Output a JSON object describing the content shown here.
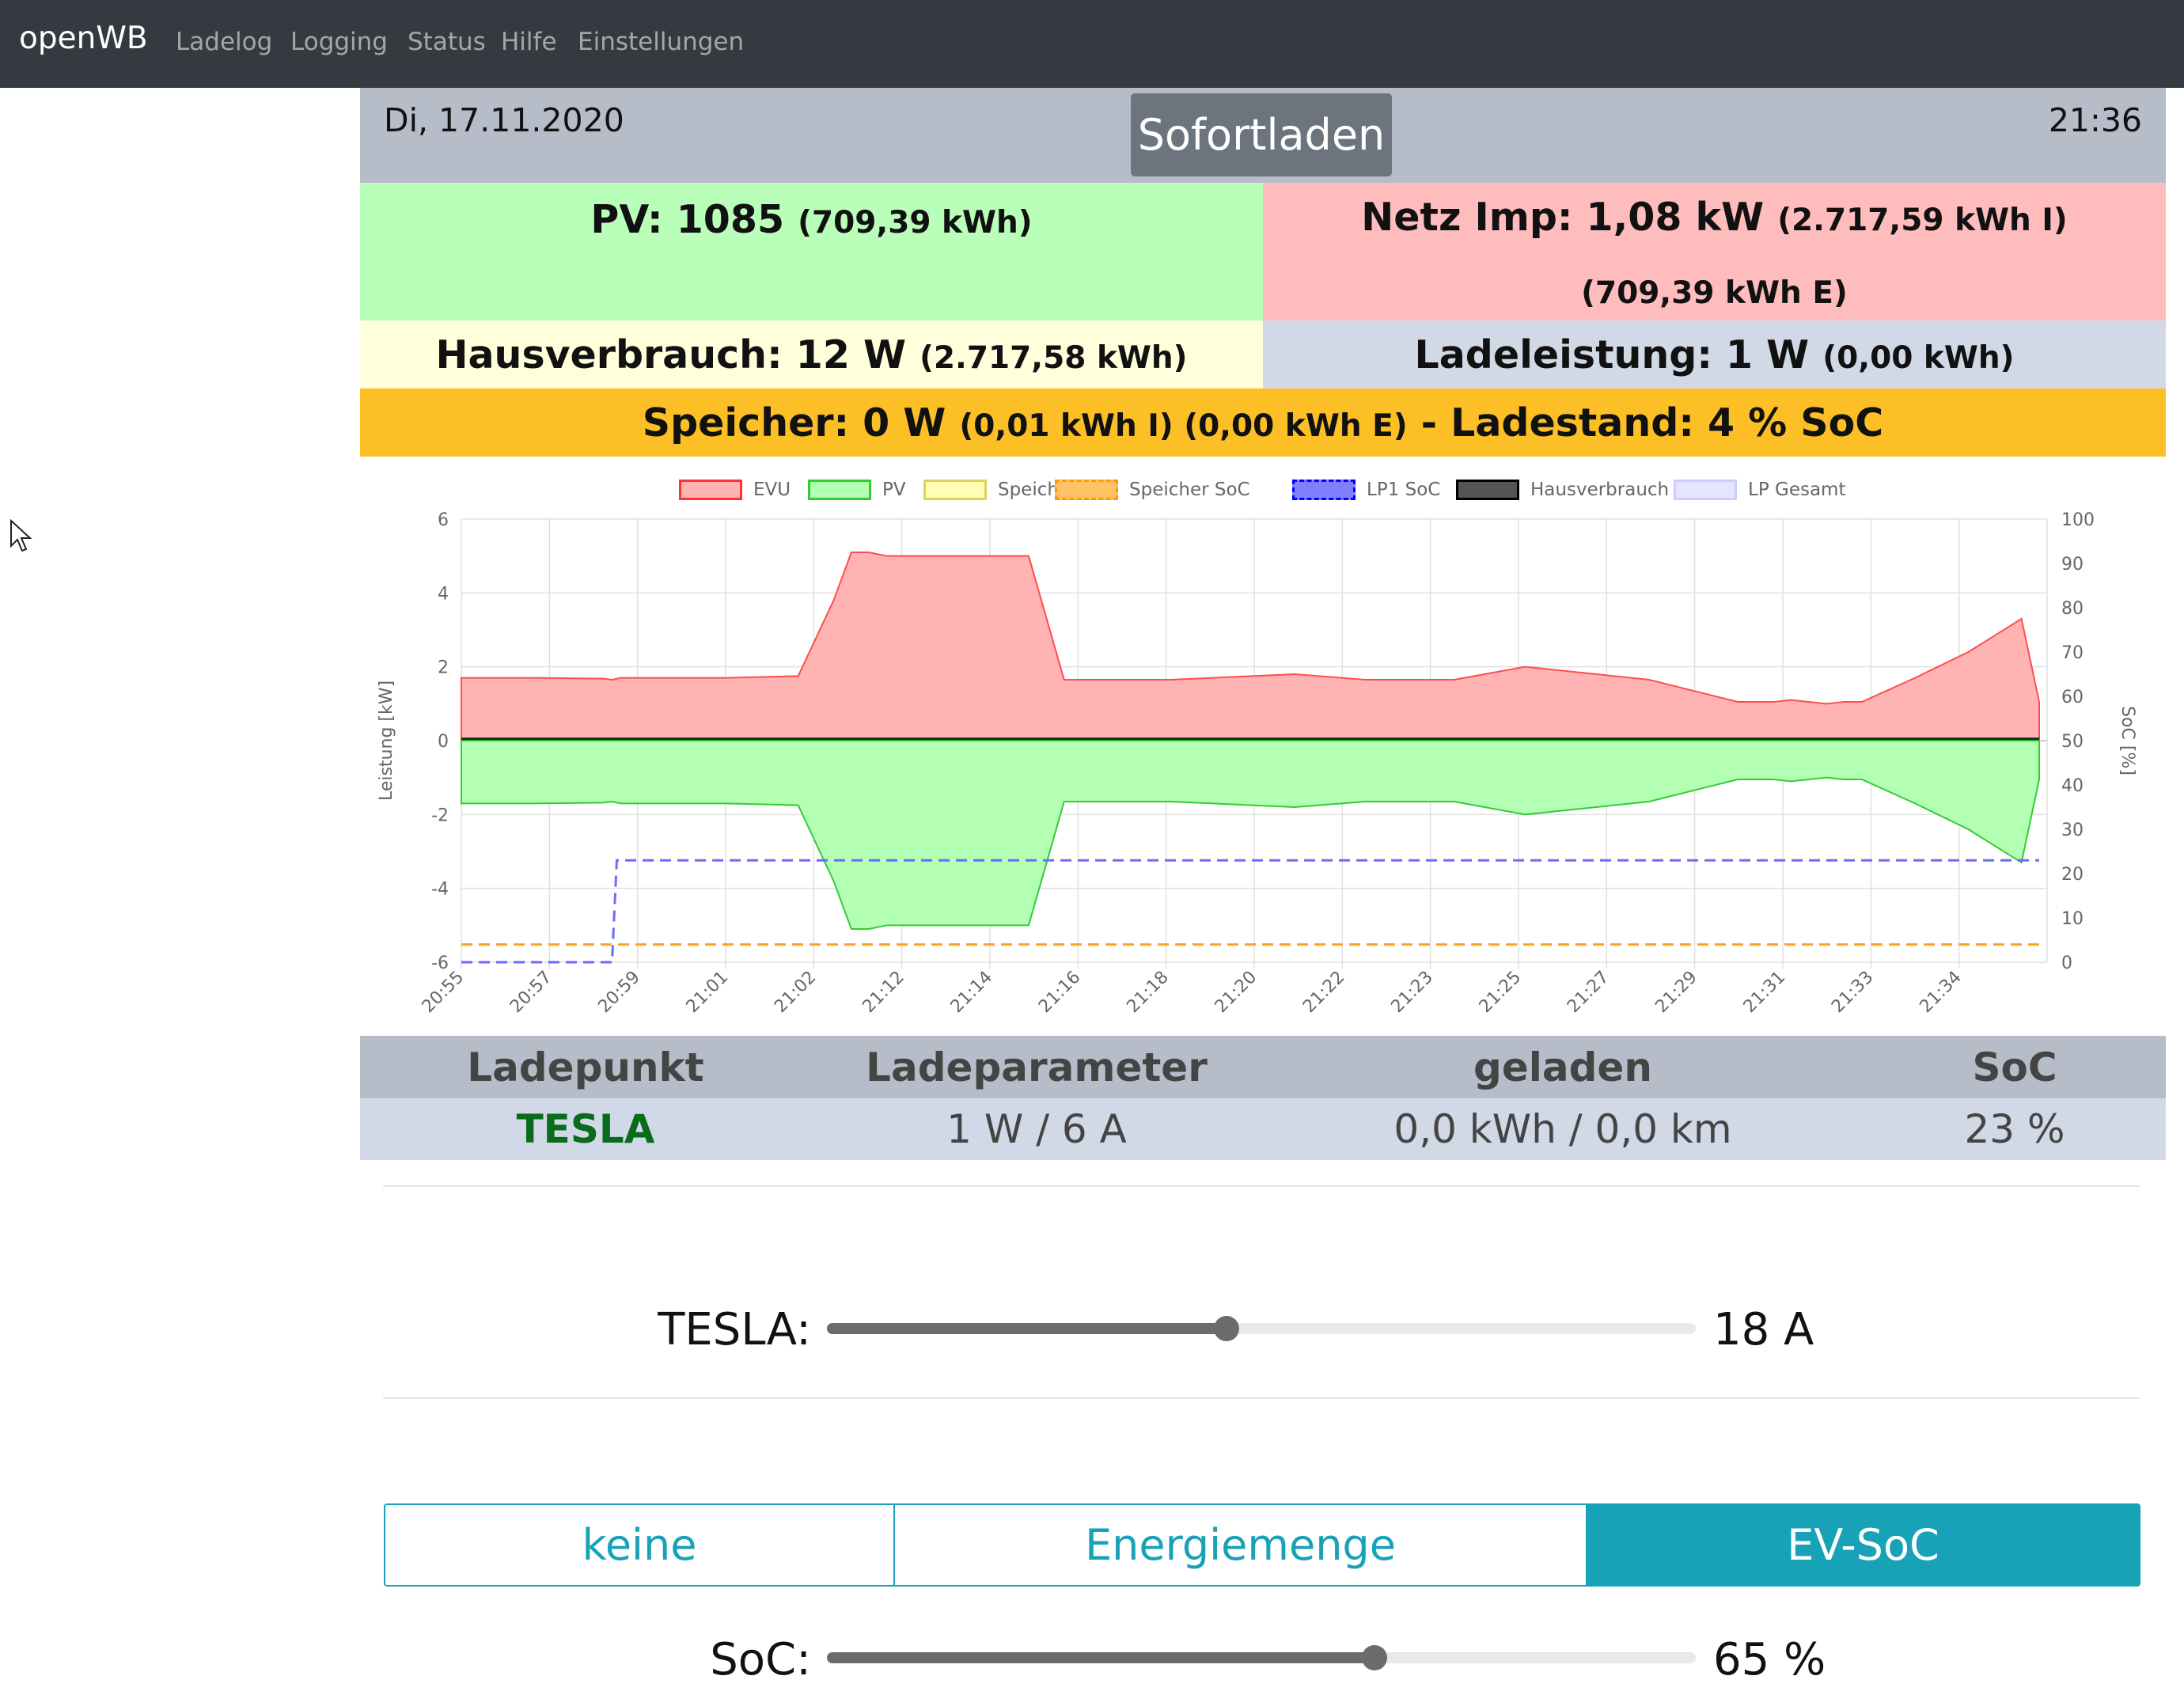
{
  "nav": {
    "brand": "openWB",
    "links": [
      "Ladelog",
      "Logging",
      "Status",
      "Hilfe",
      "Einstellungen"
    ]
  },
  "header": {
    "date": "Di, 17.11.2020",
    "mode": "Sofortladen",
    "time": "21:36"
  },
  "pv": {
    "label": "PV: 1085",
    "detail": "(709,39 kWh)"
  },
  "netz": {
    "label": "Netz Imp: 1,08 kW",
    "detail": "(2.717,59 kWh I) (709,39 kWh E)"
  },
  "haus": {
    "label": "Hausverbrauch: 12 W",
    "detail": "(2.717,58 kWh)"
  },
  "lade": {
    "label": "Ladeleistung: 1 W",
    "detail": "(0,00 kWh)"
  },
  "speicher": {
    "label": "Speicher: 0 W",
    "detail": "(0,01 kWh I) (0,00 kWh E)",
    "soc_label": "- Ladestand: 4 % SoC"
  },
  "chart_data": {
    "type": "area",
    "legend": [
      {
        "name": "EVU",
        "fill": "#ffb3b3",
        "stroke": "#ff3333",
        "dashed": false
      },
      {
        "name": "PV",
        "fill": "#b3ffb3",
        "stroke": "#33cc33",
        "dashed": false
      },
      {
        "name": "Speicher",
        "fill": "#ffffb3",
        "stroke": "#e0d060",
        "dashed": false
      },
      {
        "name": "Speicher SoC",
        "fill": "#ffc266",
        "stroke": "#ff9900",
        "dashed": true
      },
      {
        "name": "LP1 SoC",
        "fill": "#8080ff",
        "stroke": "#0000ff",
        "dashed": true
      },
      {
        "name": "Hausverbrauch",
        "fill": "#555555",
        "stroke": "#000000",
        "dashed": false
      },
      {
        "name": "LP Gesamt",
        "fill": "#e5e5ff",
        "stroke": "#ccccff",
        "dashed": false
      }
    ],
    "y_left": {
      "label": "Leistung [kW]",
      "min": -6,
      "max": 6,
      "ticks": [
        6,
        4,
        2,
        0,
        -2,
        -4,
        -6
      ]
    },
    "y_right": {
      "label": "SoC [%]",
      "min": 0,
      "max": 100,
      "ticks": [
        100,
        90,
        80,
        70,
        60,
        50,
        40,
        30,
        20,
        10,
        0
      ]
    },
    "x_labels": [
      "20:55",
      "20:57",
      "20:59",
      "21:01",
      "21:02",
      "21:12",
      "21:14",
      "21:16",
      "21:18",
      "21:20",
      "21:22",
      "21:23",
      "21:25",
      "21:27",
      "21:29",
      "21:31",
      "21:33",
      "21:34"
    ],
    "grid": true,
    "legend_position": "top",
    "x_steps": [
      0,
      4,
      8,
      8.5,
      9,
      13,
      14,
      15,
      19,
      21,
      22,
      23,
      24,
      27,
      32,
      34,
      35,
      40,
      47,
      51,
      56,
      60,
      67,
      72,
      73,
      74,
      75,
      76,
      77,
      78,
      79,
      82,
      85,
      88,
      89
    ],
    "evu_kw": [
      1.7,
      1.7,
      1.68,
      1.65,
      1.7,
      1.7,
      1.7,
      1.7,
      1.75,
      3.8,
      5.1,
      5.1,
      5.0,
      5.0,
      5.0,
      1.65,
      1.65,
      1.65,
      1.8,
      1.65,
      1.65,
      2.0,
      1.65,
      1.05,
      1.05,
      1.05,
      1.1,
      1.05,
      1.0,
      1.05,
      1.05,
      1.7,
      2.4,
      3.3,
      1.05
    ],
    "pv_kw": [
      -1.7,
      -1.7,
      -1.68,
      -1.65,
      -1.7,
      -1.7,
      -1.7,
      -1.7,
      -1.75,
      -3.8,
      -5.1,
      -5.1,
      -5.0,
      -5.0,
      -5.0,
      -1.65,
      -1.65,
      -1.65,
      -1.8,
      -1.65,
      -1.65,
      -2.0,
      -1.65,
      -1.05,
      -1.05,
      -1.05,
      -1.1,
      -1.05,
      -1.0,
      -1.05,
      -1.05,
      -1.7,
      -2.4,
      -3.3,
      -1.05
    ],
    "speicher_soc_pct": 4,
    "lp1_soc": {
      "before": 0,
      "after": 23
    }
  },
  "table": {
    "headers": [
      "Ladepunkt",
      "Ladeparameter",
      "geladen",
      "SoC"
    ],
    "row": {
      "name": "TESLA",
      "param": "1 W / 6 A",
      "geladen": "0,0 kWh / 0,0 km",
      "soc": "23 %"
    }
  },
  "current_slider": {
    "label": "TESLA:",
    "value": "18 A",
    "fraction": 0.46
  },
  "limit_buttons": [
    {
      "label": "keine",
      "active": false
    },
    {
      "label": "Energiemenge",
      "active": false
    },
    {
      "label": "EV-SoC",
      "active": true
    }
  ],
  "soc_slider": {
    "label": "SoC:",
    "value": "65 %",
    "fraction": 0.63
  }
}
